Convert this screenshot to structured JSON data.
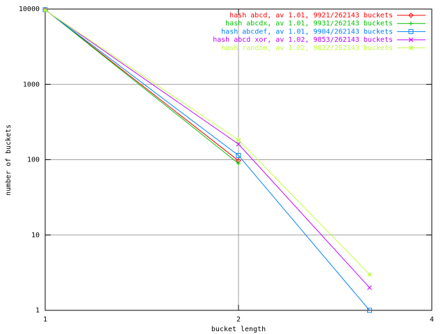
{
  "chart_data": {
    "type": "line",
    "xlabel": "bucket length",
    "ylabel": "number of buckets",
    "x": [
      1,
      2,
      3.2
    ],
    "xlim": [
      1,
      4
    ],
    "xticks": [
      1,
      2,
      4
    ],
    "xlog": true,
    "ylim": [
      1,
      10000
    ],
    "yticks": [
      1,
      10,
      100,
      1000,
      10000
    ],
    "ylog": true,
    "grid": true,
    "legend": "top-right",
    "series": [
      {
        "name": "hash abcd, av 1.01, 9921/262143 buckets",
        "color": "#ff0000",
        "marker": "diamond",
        "values": [
          9820,
          97,
          null
        ]
      },
      {
        "name": "hash abcdx, av 1.01, 9931/262143 buckets",
        "color": "#00c000",
        "marker": "plus",
        "values": [
          9840,
          89,
          null
        ]
      },
      {
        "name": "hash abcdef, av 1.01, 9904/262143 buckets",
        "color": "#0080ff",
        "marker": "square",
        "values": [
          9790,
          114,
          1
        ]
      },
      {
        "name": "hash abcd xor, av 1.02, 9853/262143 buckets",
        "color": "#c000ff",
        "marker": "cross",
        "values": [
          9690,
          161,
          2
        ]
      },
      {
        "name": "hash random, av 1.02, 9832/262143 buckets",
        "color": "#c0ff40",
        "marker": "star",
        "values": [
          9645,
          183,
          3
        ]
      }
    ]
  }
}
